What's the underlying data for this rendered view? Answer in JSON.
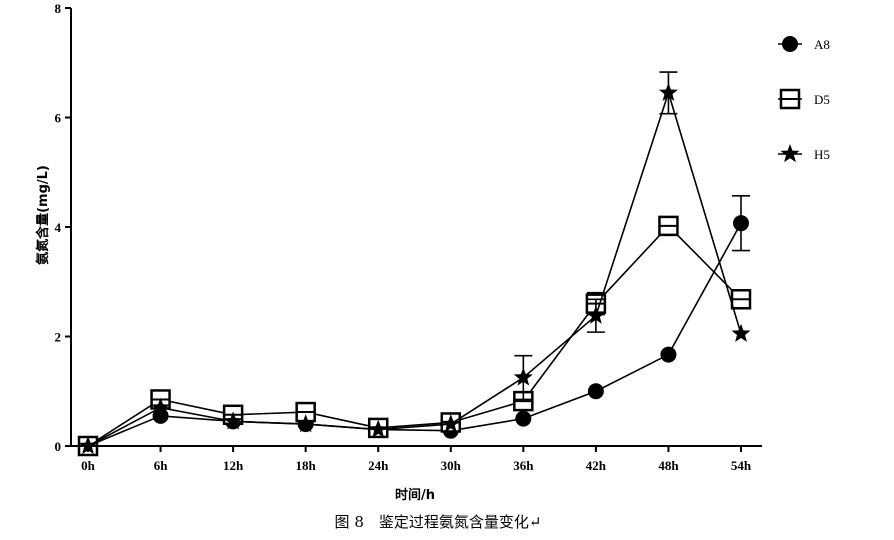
{
  "chart_data": {
    "type": "line",
    "title": "",
    "xlabel": "时间/h",
    "ylabel": "氨氮含量(mg/L)",
    "categories": [
      "0h",
      "6h",
      "12h",
      "18h",
      "24h",
      "30h",
      "36h",
      "42h",
      "48h",
      "54h"
    ],
    "ylim": [
      0,
      8
    ],
    "yticks": [
      0,
      2,
      4,
      6,
      8
    ],
    "legend_position": "right",
    "series": [
      {
        "name": "A8",
        "marker": "circle",
        "values": [
          0.0,
          0.55,
          0.45,
          0.4,
          0.3,
          0.28,
          0.5,
          1.0,
          1.67,
          4.07
        ],
        "errors": [
          0,
          0,
          0,
          0,
          0,
          0,
          0,
          0,
          0,
          0.5
        ]
      },
      {
        "name": "D5",
        "marker": "square-open",
        "values": [
          0.0,
          0.85,
          0.57,
          0.62,
          0.33,
          0.43,
          0.82,
          2.6,
          4.02,
          2.68
        ],
        "errors": [
          0,
          0,
          0,
          0,
          0,
          0,
          0,
          0.2,
          0,
          0
        ]
      },
      {
        "name": "H5",
        "marker": "star",
        "values": [
          0.0,
          0.7,
          0.45,
          0.4,
          0.3,
          0.4,
          1.25,
          2.38,
          6.45,
          2.05
        ],
        "errors": [
          0,
          0,
          0,
          0,
          0,
          0,
          0.4,
          0.3,
          0.38,
          0
        ]
      }
    ],
    "caption": "图 8　鉴定过程氨氮含量变化↵"
  }
}
